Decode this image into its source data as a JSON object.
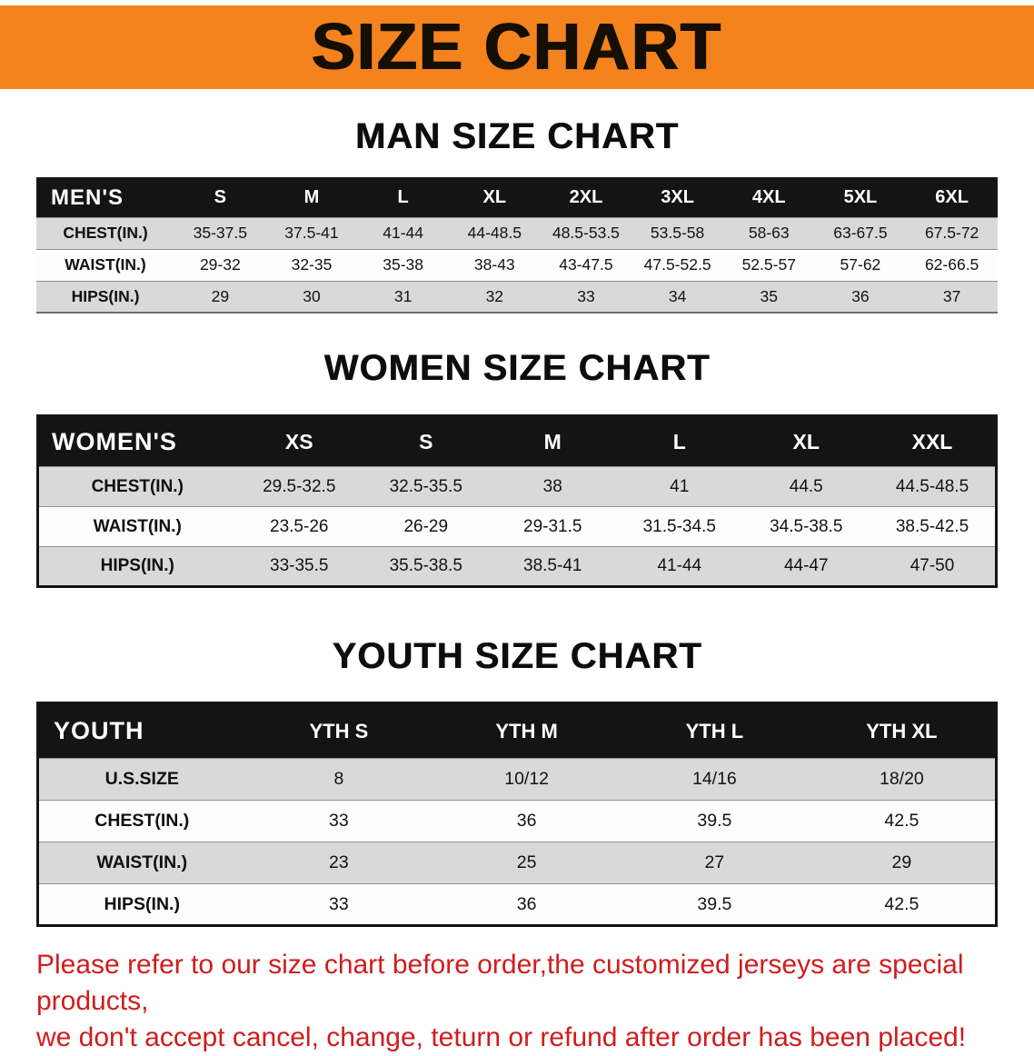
{
  "banner": {
    "title": "SIZE CHART",
    "background": "#f5831d"
  },
  "sections": [
    {
      "heading": "MAN SIZE CHART",
      "table": {
        "name": "mens",
        "header": [
          "MEN'S",
          "S",
          "M",
          "L",
          "XL",
          "2XL",
          "3XL",
          "4XL",
          "5XL",
          "6XL"
        ],
        "rows": [
          {
            "label": "CHEST(IN.)",
            "values": [
              "35-37.5",
              "37.5-41",
              "41-44",
              "44-48.5",
              "48.5-53.5",
              "53.5-58",
              "58-63",
              "63-67.5",
              "67.5-72"
            ]
          },
          {
            "label": "WAIST(IN.)",
            "values": [
              "29-32",
              "32-35",
              "35-38",
              "38-43",
              "43-47.5",
              "47.5-52.5",
              "52.5-57",
              "57-62",
              "62-66.5"
            ]
          },
          {
            "label": "HIPS(IN.)",
            "values": [
              "29",
              "30",
              "31",
              "32",
              "33",
              "34",
              "35",
              "36",
              "37"
            ]
          }
        ]
      }
    },
    {
      "heading": "WOMEN SIZE CHART",
      "table": {
        "name": "womens",
        "header": [
          "WOMEN'S",
          "XS",
          "S",
          "M",
          "L",
          "XL",
          "XXL"
        ],
        "rows": [
          {
            "label": "CHEST(IN.)",
            "values": [
              "29.5-32.5",
              "32.5-35.5",
              "38",
              "41",
              "44.5",
              "44.5-48.5"
            ]
          },
          {
            "label": "WAIST(IN.)",
            "values": [
              "23.5-26",
              "26-29",
              "29-31.5",
              "31.5-34.5",
              "34.5-38.5",
              "38.5-42.5"
            ]
          },
          {
            "label": "HIPS(IN.)",
            "values": [
              "33-35.5",
              "35.5-38.5",
              "38.5-41",
              "41-44",
              "44-47",
              "47-50"
            ]
          }
        ]
      }
    },
    {
      "heading": "YOUTH SIZE CHART",
      "table": {
        "name": "youth",
        "header": [
          "YOUTH",
          "YTH S",
          "YTH M",
          "YTH L",
          "YTH XL"
        ],
        "rows": [
          {
            "label": "U.S.SIZE",
            "values": [
              "8",
              "10/12",
              "14/16",
              "18/20"
            ]
          },
          {
            "label": "CHEST(IN.)",
            "values": [
              "33",
              "36",
              "39.5",
              "42.5"
            ]
          },
          {
            "label": "WAIST(IN.)",
            "values": [
              "23",
              "25",
              "27",
              "29"
            ]
          },
          {
            "label": "HIPS(IN.)",
            "values": [
              "33",
              "36",
              "39.5",
              "42.5"
            ]
          }
        ]
      }
    }
  ],
  "disclaimer": {
    "color": "#cf1d1d",
    "lines": [
      "Please refer to our size chart before order,the customized jerseys are special products,",
      "we don't accept cancel, change, teturn or refund after order has been placed!"
    ]
  }
}
